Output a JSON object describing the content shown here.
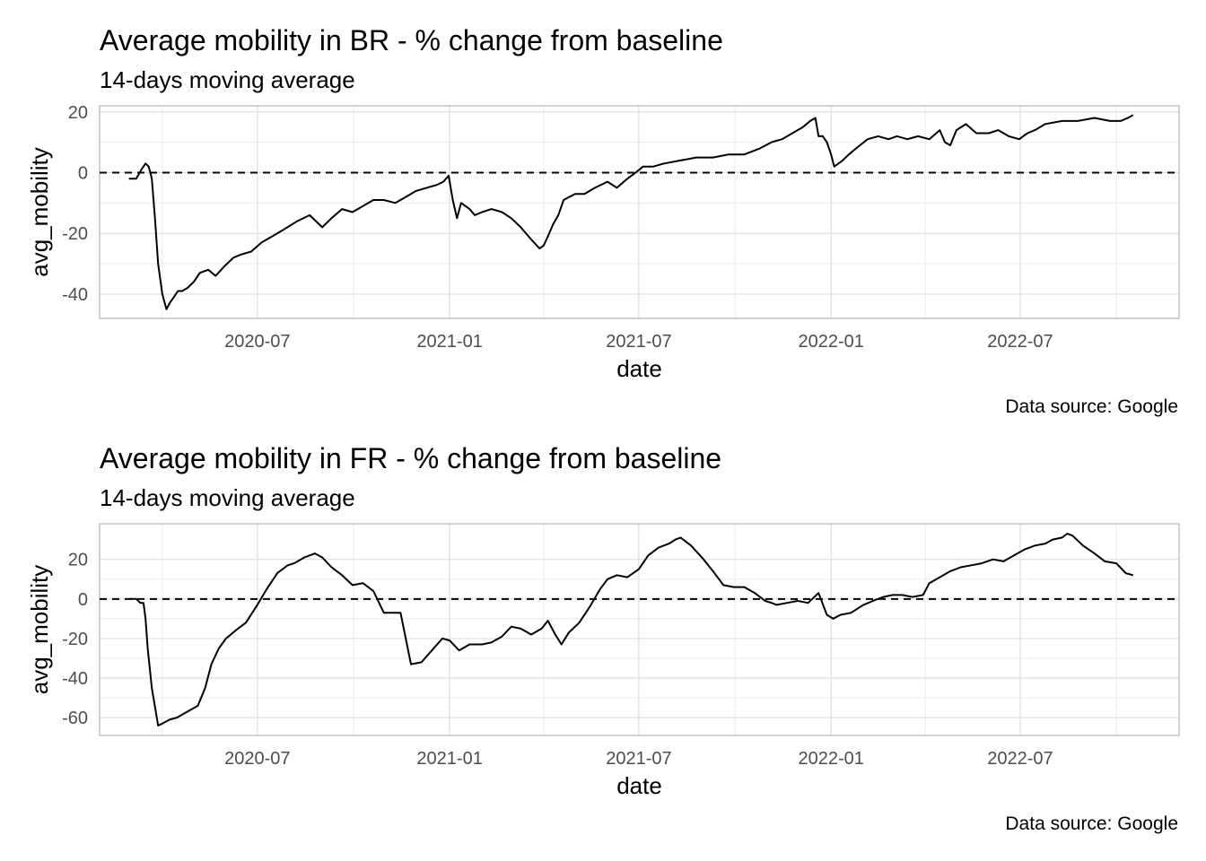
{
  "chart_data": [
    {
      "type": "line",
      "title": "Average mobility in BR - % change from baseline",
      "subtitle": "14-days moving average",
      "xlabel": "date",
      "ylabel": "avg_mobility",
      "caption": "Data source: Google",
      "xlim": [
        "2020-02-01",
        "2022-11-30"
      ],
      "ylim": [
        -48,
        22
      ],
      "x_ticks": [
        "2020-07",
        "2021-01",
        "2021-07",
        "2022-01",
        "2022-07"
      ],
      "y_ticks": [
        20,
        0,
        -20,
        -40
      ],
      "reference_line": {
        "y": 0,
        "style": "dashed"
      },
      "grid": true,
      "series": [
        {
          "x": [
            "2020-02-29",
            "2020-03-07",
            "2020-03-12",
            "2020-03-16",
            "2020-03-19",
            "2020-03-22",
            "2020-03-25",
            "2020-03-28",
            "2020-04-01",
            "2020-04-05",
            "2020-04-08",
            "2020-04-12",
            "2020-04-16",
            "2020-04-20",
            "2020-04-25",
            "2020-05-01",
            "2020-05-07",
            "2020-05-15",
            "2020-05-22",
            "2020-05-30",
            "2020-06-08",
            "2020-06-15",
            "2020-06-25",
            "2020-07-05",
            "2020-07-15",
            "2020-07-25",
            "2020-08-08",
            "2020-08-20",
            "2020-09-01",
            "2020-09-10",
            "2020-09-20",
            "2020-09-30",
            "2020-10-10",
            "2020-10-20",
            "2020-10-30",
            "2020-11-10",
            "2020-11-20",
            "2020-11-30",
            "2020-12-10",
            "2020-12-20",
            "2020-12-26",
            "2020-12-31",
            "2021-01-04",
            "2021-01-08",
            "2021-01-12",
            "2021-01-16",
            "2021-01-20",
            "2021-01-25",
            "2021-02-01",
            "2021-02-10",
            "2021-02-20",
            "2021-03-01",
            "2021-03-10",
            "2021-03-20",
            "2021-03-28",
            "2021-04-01",
            "2021-04-05",
            "2021-04-10",
            "2021-04-15",
            "2021-04-20",
            "2021-05-01",
            "2021-05-10",
            "2021-05-20",
            "2021-06-01",
            "2021-06-10",
            "2021-06-20",
            "2021-06-28",
            "2021-07-05",
            "2021-07-15",
            "2021-07-25",
            "2021-08-10",
            "2021-08-25",
            "2021-09-10",
            "2021-09-25",
            "2021-10-10",
            "2021-10-25",
            "2021-11-05",
            "2021-11-15",
            "2021-11-25",
            "2021-12-05",
            "2021-12-12",
            "2021-12-17",
            "2021-12-20",
            "2021-12-24",
            "2021-12-28",
            "2022-01-01",
            "2022-01-04",
            "2022-01-08",
            "2022-01-12",
            "2022-01-18",
            "2022-01-25",
            "2022-02-05",
            "2022-02-15",
            "2022-02-25",
            "2022-03-05",
            "2022-03-15",
            "2022-03-25",
            "2022-04-05",
            "2022-04-15",
            "2022-04-20",
            "2022-04-25",
            "2022-05-01",
            "2022-05-10",
            "2022-05-20",
            "2022-06-01",
            "2022-06-10",
            "2022-06-20",
            "2022-06-30",
            "2022-07-08",
            "2022-07-15",
            "2022-07-25",
            "2022-08-10",
            "2022-08-25",
            "2022-09-10",
            "2022-09-25",
            "2022-10-05",
            "2022-10-12",
            "2022-10-17"
          ],
          "values": [
            -2,
            -2,
            1,
            3,
            2,
            -2,
            -15,
            -30,
            -40,
            -45,
            -43,
            -41,
            -39,
            -39,
            -38,
            -36,
            -33,
            -32,
            -34,
            -31,
            -28,
            -27,
            -26,
            -23,
            -21,
            -19,
            -16,
            -14,
            -18,
            -15,
            -12,
            -13,
            -11,
            -9,
            -9,
            -10,
            -8,
            -6,
            -5,
            -4,
            -3,
            -1,
            -9,
            -15,
            -10,
            -11,
            -12,
            -14,
            -13,
            -12,
            -13,
            -15,
            -18,
            -22,
            -25,
            -24,
            -21,
            -17,
            -14,
            -9,
            -7,
            -7,
            -5,
            -3,
            -5,
            -2,
            0,
            2,
            2,
            3,
            4,
            5,
            5,
            6,
            6,
            8,
            10,
            11,
            13,
            15,
            17,
            18,
            12,
            12,
            10,
            6,
            2,
            3,
            4,
            6,
            8,
            11,
            12,
            11,
            12,
            11,
            12,
            11,
            14,
            10,
            9,
            14,
            16,
            13,
            13,
            14,
            12,
            11,
            13,
            14,
            16,
            17,
            17,
            18,
            17,
            17,
            18,
            19
          ]
        }
      ]
    },
    {
      "type": "line",
      "title": "Average mobility in FR - % change from baseline",
      "subtitle": "14-days moving average",
      "xlabel": "date",
      "ylabel": "avg_mobility",
      "caption": "Data source: Google",
      "xlim": [
        "2020-02-01",
        "2022-11-30"
      ],
      "ylim": [
        -69,
        38
      ],
      "x_ticks": [
        "2020-07",
        "2021-01",
        "2021-07",
        "2022-01",
        "2022-07"
      ],
      "y_ticks": [
        20,
        0,
        -20,
        -40,
        -60
      ],
      "reference_line": {
        "y": 0,
        "style": "dashed"
      },
      "grid": true,
      "series": [
        {
          "x": [
            "2020-02-29",
            "2020-03-07",
            "2020-03-11",
            "2020-03-14",
            "2020-03-16",
            "2020-03-18",
            "2020-03-22",
            "2020-03-28",
            "2020-04-01",
            "2020-04-08",
            "2020-04-15",
            "2020-04-25",
            "2020-05-05",
            "2020-05-12",
            "2020-05-18",
            "2020-05-25",
            "2020-06-01",
            "2020-06-10",
            "2020-06-20",
            "2020-07-01",
            "2020-07-10",
            "2020-07-20",
            "2020-07-30",
            "2020-08-05",
            "2020-08-15",
            "2020-08-25",
            "2020-09-01",
            "2020-09-10",
            "2020-09-20",
            "2020-09-30",
            "2020-10-10",
            "2020-10-20",
            "2020-10-30",
            "2020-11-05",
            "2020-11-15",
            "2020-11-25",
            "2020-12-05",
            "2020-12-15",
            "2020-12-25",
            "2021-01-01",
            "2021-01-10",
            "2021-01-20",
            "2021-02-01",
            "2021-02-10",
            "2021-02-20",
            "2021-03-01",
            "2021-03-10",
            "2021-03-20",
            "2021-03-30",
            "2021-04-05",
            "2021-04-12",
            "2021-04-18",
            "2021-04-25",
            "2021-05-05",
            "2021-05-15",
            "2021-05-25",
            "2021-06-01",
            "2021-06-10",
            "2021-06-20",
            "2021-07-01",
            "2021-07-10",
            "2021-07-20",
            "2021-07-30",
            "2021-08-05",
            "2021-08-10",
            "2021-08-20",
            "2021-09-01",
            "2021-09-10",
            "2021-09-20",
            "2021-09-30",
            "2021-10-10",
            "2021-10-20",
            "2021-10-30",
            "2021-11-05",
            "2021-11-10",
            "2021-11-20",
            "2021-11-30",
            "2021-12-10",
            "2021-12-20",
            "2021-12-28",
            "2022-01-03",
            "2022-01-10",
            "2022-01-20",
            "2022-02-01",
            "2022-02-10",
            "2022-02-20",
            "2022-03-01",
            "2022-03-10",
            "2022-03-20",
            "2022-03-30",
            "2022-04-05",
            "2022-04-15",
            "2022-04-25",
            "2022-05-05",
            "2022-05-15",
            "2022-05-25",
            "2022-06-05",
            "2022-06-15",
            "2022-06-25",
            "2022-07-05",
            "2022-07-15",
            "2022-07-25",
            "2022-08-01",
            "2022-08-10",
            "2022-08-15",
            "2022-08-20",
            "2022-08-30",
            "2022-09-10",
            "2022-09-20",
            "2022-10-01",
            "2022-10-10",
            "2022-10-17"
          ],
          "values": [
            0,
            0,
            -2,
            -2,
            -10,
            -25,
            -45,
            -64,
            -63,
            -61,
            -60,
            -57,
            -54,
            -45,
            -33,
            -25,
            -20,
            -16,
            -12,
            -3,
            5,
            13,
            17,
            18,
            21,
            23,
            21,
            16,
            12,
            7,
            8,
            4,
            -7,
            -7,
            -7,
            -33,
            -32,
            -26,
            -20,
            -21,
            -26,
            -23,
            -23,
            -22,
            -19,
            -14,
            -15,
            -18,
            -15,
            -11,
            -18,
            -23,
            -17,
            -12,
            -4,
            5,
            10,
            12,
            11,
            15,
            22,
            26,
            28,
            30,
            31,
            27,
            20,
            14,
            7,
            6,
            6,
            3,
            -1,
            -2,
            -3,
            -2,
            -1,
            -2,
            3,
            -8,
            -10,
            -8,
            -7,
            -3,
            -1,
            1,
            2,
            2,
            1,
            2,
            8,
            11,
            14,
            16,
            17,
            18,
            20,
            19,
            22,
            25,
            27,
            28,
            30,
            31,
            33,
            32,
            27,
            23,
            19,
            18,
            13,
            12
          ]
        }
      ]
    }
  ]
}
